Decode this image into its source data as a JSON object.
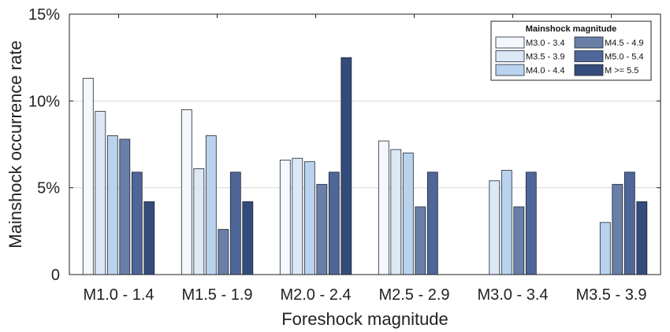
{
  "chart_data": {
    "type": "bar",
    "title": "",
    "xlabel": "Foreshock magnitude",
    "ylabel": "Mainshock occurrence rate",
    "ylim": [
      0,
      15
    ],
    "y_ticks": [
      0,
      5,
      10,
      15
    ],
    "y_tick_labels": [
      "0",
      "5%",
      "10%",
      "15%"
    ],
    "grid": "horizontal",
    "legend": {
      "title": "Mainshock magnitude",
      "placement": "top-right"
    },
    "categories": [
      "M1.0 - 1.4",
      "M1.5 - 1.9",
      "M2.0 - 2.4",
      "M2.5 - 2.9",
      "M3.0 - 3.4",
      "M3.5 - 3.9"
    ],
    "series": [
      {
        "name": "M3.0 - 3.4",
        "color": "#f4f7fb",
        "values": [
          11.3,
          9.5,
          6.6,
          7.7,
          0,
          0
        ]
      },
      {
        "name": "M3.5 - 3.9",
        "color": "#dde8f6",
        "values": [
          9.4,
          6.1,
          6.7,
          7.2,
          5.4,
          0
        ]
      },
      {
        "name": "M4.0 - 4.4",
        "color": "#b9d2ee",
        "values": [
          8.0,
          8.0,
          6.5,
          7.0,
          6.0,
          3.0
        ]
      },
      {
        "name": "M4.5 - 4.9",
        "color": "#6a7fa8",
        "values": [
          7.8,
          2.6,
          5.2,
          3.9,
          3.9,
          5.2
        ]
      },
      {
        "name": "M5.0 - 5.4",
        "color": "#4f6699",
        "values": [
          5.9,
          5.9,
          5.9,
          5.9,
          5.9,
          5.9
        ]
      },
      {
        "name": "M >= 5.5",
        "color": "#344c7c",
        "values": [
          4.2,
          4.2,
          12.5,
          0,
          0,
          4.2
        ]
      }
    ]
  }
}
